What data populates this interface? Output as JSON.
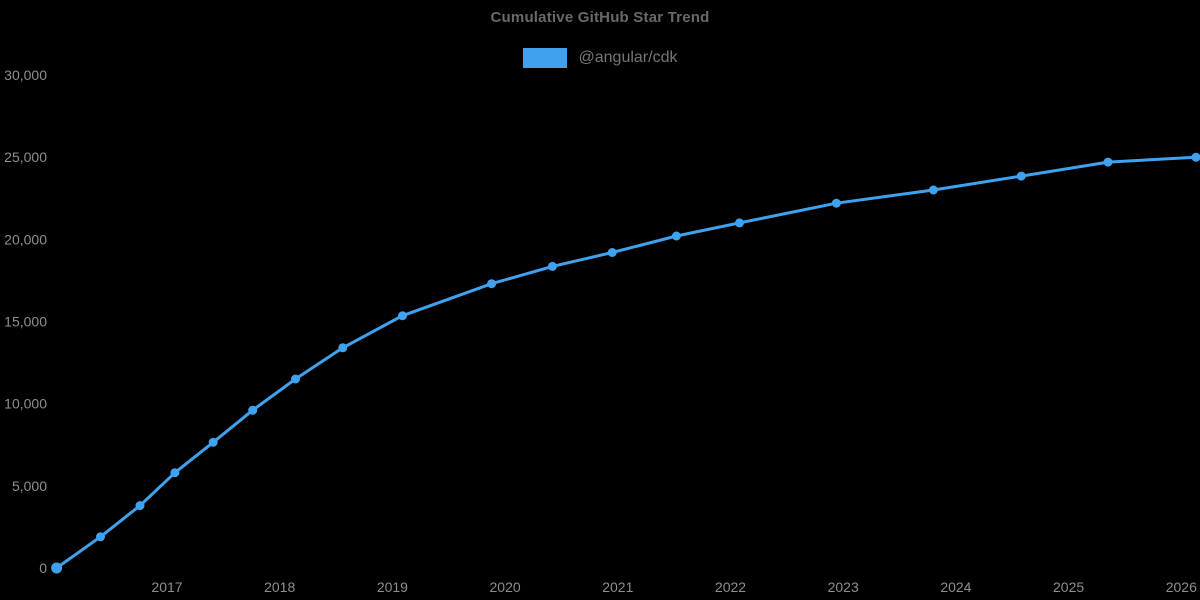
{
  "chart_data": {
    "type": "line",
    "title": "Cumulative GitHub Star Trend",
    "xlabel": "",
    "ylabel": "",
    "xlim": [
      2016.0,
      2026.17
    ],
    "ylim": [
      0,
      30000
    ],
    "grid": false,
    "legend_position": "top",
    "x_ticks": [
      2017,
      2018,
      2019,
      2020,
      2021,
      2022,
      2023,
      2024,
      2025,
      2026
    ],
    "x_tick_labels": [
      "2017",
      "2018",
      "2019",
      "2020",
      "2021",
      "2022",
      "2023",
      "2024",
      "2025",
      "2026"
    ],
    "y_ticks": [
      0,
      5000,
      10000,
      15000,
      20000,
      25000,
      30000
    ],
    "y_tick_labels": [
      "0",
      "5,000",
      "10,000",
      "15,000",
      "20,000",
      "25,000",
      "30,000"
    ],
    "series": [
      {
        "name": "@angular/cdk",
        "x": [
          2016.02,
          2016.41,
          2016.76,
          2017.07,
          2017.41,
          2017.76,
          2018.14,
          2018.56,
          2019.09,
          2019.88,
          2020.42,
          2020.95,
          2021.52,
          2022.08,
          2022.94,
          2023.8,
          2024.58,
          2025.35,
          2026.13
        ],
        "y": [
          0,
          1900,
          3800,
          5800,
          7650,
          9600,
          11500,
          13400,
          15350,
          17300,
          18350,
          19200,
          20200,
          21000,
          22200,
          23000,
          23850,
          24700,
          25000
        ]
      }
    ],
    "colors": {
      "background": "#000000",
      "line": "#40A2EE",
      "marker": "#40A2EE",
      "legend_swatch": "#40A2EE",
      "title_text": "#67696C",
      "legend_text": "#737578",
      "tick_text": "#8E8E8E"
    }
  }
}
